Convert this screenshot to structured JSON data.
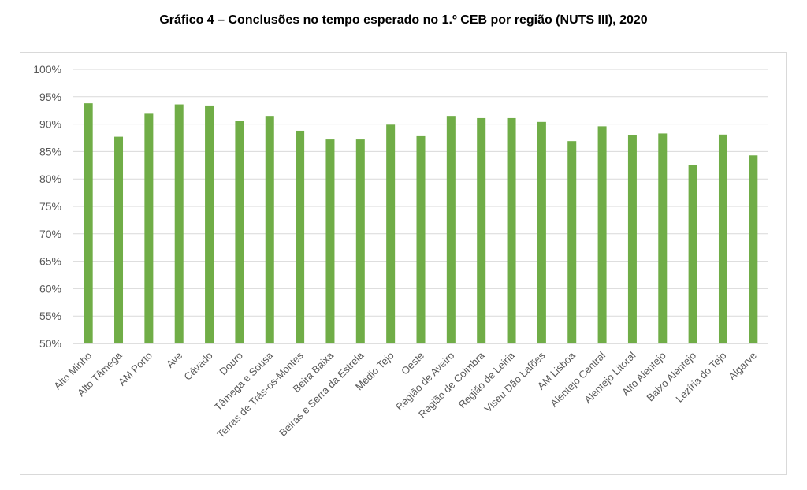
{
  "title": "Gráfico 4 – Conclusões no tempo esperado no 1.º CEB por região (NUTS III), 2020",
  "chart_data": {
    "type": "bar",
    "title": "Gráfico 4 – Conclusões no tempo esperado no 1.º CEB por região (NUTS III), 2020",
    "xlabel": "",
    "ylabel": "",
    "ylim": [
      50,
      100
    ],
    "yticks": [
      "50%",
      "55%",
      "60%",
      "65%",
      "70%",
      "75%",
      "80%",
      "85%",
      "90%",
      "95%",
      "100%"
    ],
    "grid": true,
    "bar_color": "#70ad47",
    "categories": [
      "Alto Minho",
      "Alto Tâmega",
      "AM Porto",
      "Ave",
      "Cávado",
      "Douro",
      "Tâmega e Sousa",
      "Terras de Trás-os-Montes",
      "Beira Baixa",
      "Beiras e Serra da Estrela",
      "Médio Tejo",
      "Oeste",
      "Região de Aveiro",
      "Região de Coimbra",
      "Região de Leiria",
      "Viseu Dão Lafões",
      "AM Lisboa",
      "Alentejo Central",
      "Alentejo Litoral",
      "Alto Alentejo",
      "Baixo Alentejo",
      "Lezíria do Tejo",
      "Algarve"
    ],
    "values": [
      93.8,
      87.7,
      91.9,
      93.6,
      93.4,
      90.6,
      91.5,
      88.8,
      87.2,
      87.2,
      89.9,
      87.8,
      91.5,
      91.1,
      91.1,
      90.4,
      86.9,
      89.6,
      88.0,
      88.3,
      82.5,
      88.1,
      84.3
    ]
  }
}
